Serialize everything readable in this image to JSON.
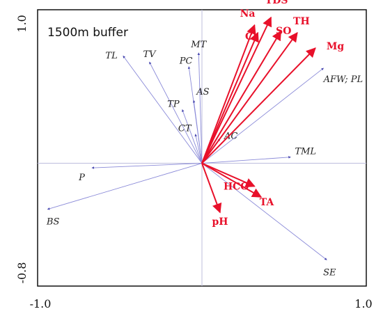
{
  "chart_data": {
    "type": "scatter",
    "subtype": "biplot",
    "annotation": "1500m buffer",
    "xlim": [
      -1.0,
      1.0
    ],
    "ylim": [
      -0.8,
      1.0
    ],
    "x_tick_labels": [
      "-1.0",
      "1.0"
    ],
    "y_tick_labels": [
      "1.0",
      "-0.8"
    ],
    "grid": false,
    "colors": {
      "response": "#e8102a",
      "explanatory": "#8a8ad8",
      "axis": "#bcbcdc"
    },
    "response_vectors": [
      {
        "label": "Na",
        "x": 0.32,
        "y": 0.9
      },
      {
        "label": "TDS",
        "x": 0.42,
        "y": 0.95
      },
      {
        "label": "Cl",
        "x": 0.34,
        "y": 0.85
      },
      {
        "label": "SO",
        "x": 0.48,
        "y": 0.86
      },
      {
        "label": "TH",
        "x": 0.58,
        "y": 0.85
      },
      {
        "label": "Mg",
        "x": 0.69,
        "y": 0.75
      },
      {
        "label": "HCO",
        "x": 0.32,
        "y": -0.15
      },
      {
        "label": "TA",
        "x": 0.36,
        "y": -0.22
      },
      {
        "label": "pH",
        "x": 0.11,
        "y": -0.32
      }
    ],
    "explanatory_vectors": [
      {
        "label": "TL",
        "x": -0.48,
        "y": 0.7
      },
      {
        "label": "TV",
        "x": -0.32,
        "y": 0.66
      },
      {
        "label": "MT",
        "x": -0.02,
        "y": 0.72
      },
      {
        "label": "PC",
        "x": -0.08,
        "y": 0.63
      },
      {
        "label": "AS",
        "x": -0.05,
        "y": 0.41
      },
      {
        "label": "TP",
        "x": -0.12,
        "y": 0.35
      },
      {
        "label": "CT",
        "x": -0.04,
        "y": 0.19
      },
      {
        "label": "AC",
        "x": 0.11,
        "y": 0.16
      },
      {
        "label": "TML",
        "x": 0.54,
        "y": 0.04
      },
      {
        "label": "AFW; PL",
        "x": 0.74,
        "y": 0.62
      },
      {
        "label": "P",
        "x": -0.67,
        "y": -0.03
      },
      {
        "label": "BS",
        "x": -0.94,
        "y": -0.3
      },
      {
        "label": "SE",
        "x": 0.76,
        "y": -0.63
      }
    ]
  }
}
